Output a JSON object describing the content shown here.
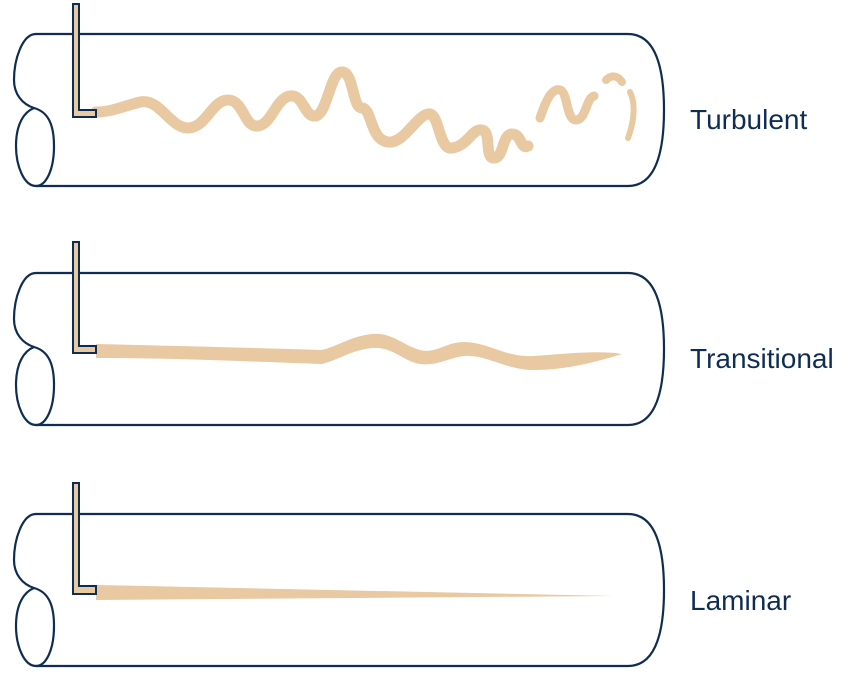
{
  "colors": {
    "pipe_stroke": "#0f2d52",
    "dye": "#e8c9a1",
    "background": "#ffffff"
  },
  "panels": [
    {
      "id": "turbulent",
      "label": "Turbulent"
    },
    {
      "id": "transitional",
      "label": "Transitional"
    },
    {
      "id": "laminar",
      "label": "Laminar"
    }
  ]
}
